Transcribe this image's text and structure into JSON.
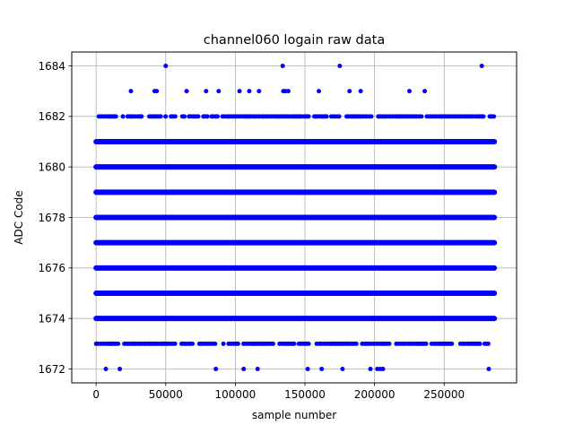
{
  "chart_data": {
    "type": "scatter",
    "title": "channel060 logain raw data",
    "xlabel": "sample number",
    "ylabel": "ADC Code",
    "xlim": [
      -17500,
      302000
    ],
    "ylim": [
      1671.45,
      1684.55
    ],
    "x_ticks": [
      0,
      50000,
      100000,
      150000,
      200000,
      250000
    ],
    "y_ticks": [
      1672,
      1674,
      1676,
      1678,
      1680,
      1682,
      1684
    ],
    "grid": true,
    "legend": "none",
    "marker_color": "#0000ff",
    "series": [
      {
        "dense_levels": [
          {
            "y": 1674,
            "x_range": [
              0,
              286000
            ]
          },
          {
            "y": 1675,
            "x_range": [
              0,
              286000
            ]
          },
          {
            "y": 1676,
            "x_range": [
              0,
              286000
            ]
          },
          {
            "y": 1677,
            "x_range": [
              0,
              286000
            ]
          },
          {
            "y": 1678,
            "x_range": [
              0,
              286000
            ]
          },
          {
            "y": 1679,
            "x_range": [
              0,
              286000
            ]
          },
          {
            "y": 1680,
            "x_range": [
              0,
              286000
            ]
          },
          {
            "y": 1681,
            "x_range": [
              0,
              286000
            ]
          }
        ],
        "sparse_levels": [
          {
            "y": 1673,
            "x_range": [
              0,
              286000
            ]
          },
          {
            "y": 1682,
            "x_range": [
              2000,
              286000
            ]
          }
        ],
        "points": [
          {
            "x": 50000,
            "y": 1684
          },
          {
            "x": 134000,
            "y": 1684
          },
          {
            "x": 175000,
            "y": 1684
          },
          {
            "x": 277000,
            "y": 1684
          },
          {
            "x": 25000,
            "y": 1683
          },
          {
            "x": 42000,
            "y": 1683
          },
          {
            "x": 43500,
            "y": 1683
          },
          {
            "x": 65000,
            "y": 1683
          },
          {
            "x": 79000,
            "y": 1683
          },
          {
            "x": 88000,
            "y": 1683
          },
          {
            "x": 103000,
            "y": 1683
          },
          {
            "x": 110000,
            "y": 1683
          },
          {
            "x": 117000,
            "y": 1683
          },
          {
            "x": 134500,
            "y": 1683
          },
          {
            "x": 136000,
            "y": 1683
          },
          {
            "x": 138000,
            "y": 1683
          },
          {
            "x": 160000,
            "y": 1683
          },
          {
            "x": 182000,
            "y": 1683
          },
          {
            "x": 190000,
            "y": 1683
          },
          {
            "x": 225000,
            "y": 1683
          },
          {
            "x": 236000,
            "y": 1683
          },
          {
            "x": 7000,
            "y": 1672
          },
          {
            "x": 17000,
            "y": 1672
          },
          {
            "x": 86000,
            "y": 1672
          },
          {
            "x": 106000,
            "y": 1672
          },
          {
            "x": 116000,
            "y": 1672
          },
          {
            "x": 152000,
            "y": 1672
          },
          {
            "x": 162000,
            "y": 1672
          },
          {
            "x": 177000,
            "y": 1672
          },
          {
            "x": 197000,
            "y": 1672
          },
          {
            "x": 202000,
            "y": 1672
          },
          {
            "x": 204000,
            "y": 1672
          },
          {
            "x": 206000,
            "y": 1672
          },
          {
            "x": 282000,
            "y": 1672
          }
        ]
      }
    ]
  }
}
